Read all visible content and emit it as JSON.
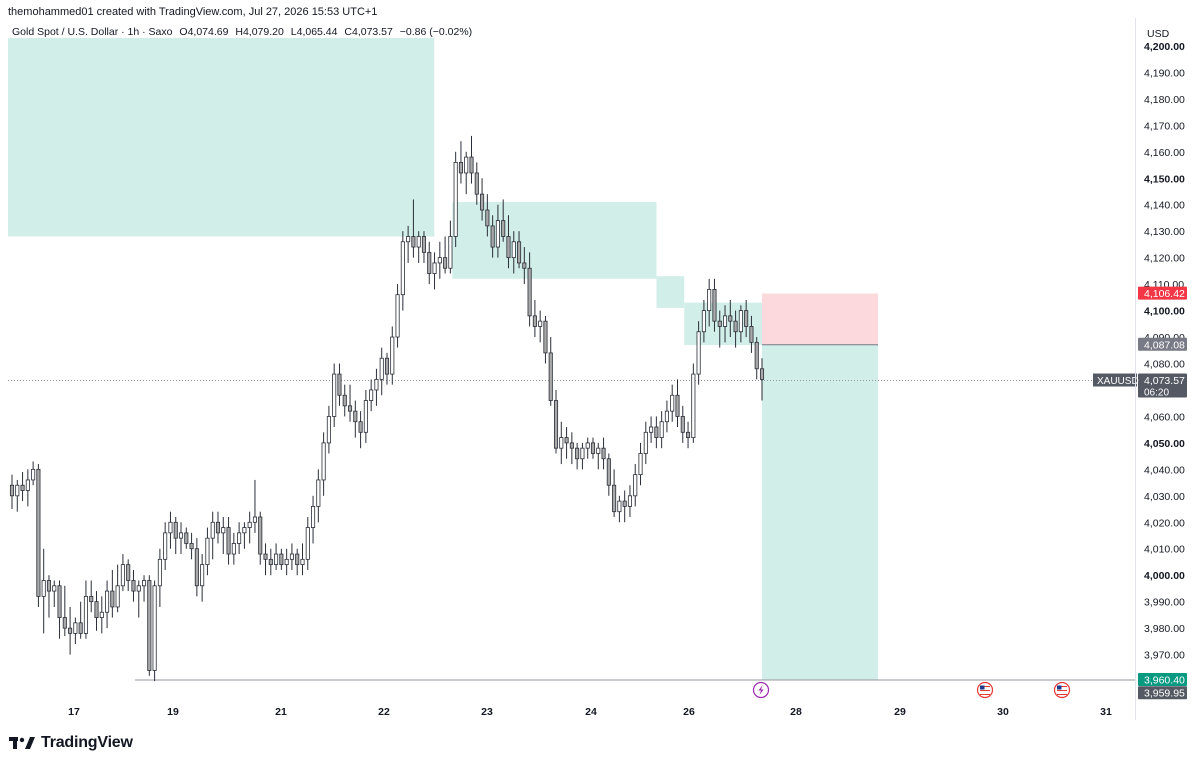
{
  "header": {
    "credit": "themohammed01 created with TradingView.com, Jul 27, 2026 15:53 UTC+1"
  },
  "legend": {
    "instrument": "Gold Spot / U.S. Dollar · 1h · Saxo",
    "open": "O4,074.69",
    "high": "H4,079.20",
    "low": "L4,065.44",
    "close": "C4,073.57",
    "change": "−0.86 (−0.02%)"
  },
  "branding": {
    "wordmark": "TradingView"
  },
  "chart_data": {
    "type": "candlestick",
    "currency": "USD",
    "symbol": "XAUUSD",
    "ylim": [
      3955,
      4203
    ],
    "y_ticks": [
      {
        "v": 4200,
        "label": "4,200.00",
        "bold": true
      },
      {
        "v": 4190,
        "label": "4,190.00"
      },
      {
        "v": 4180,
        "label": "4,180.00"
      },
      {
        "v": 4170,
        "label": "4,170.00"
      },
      {
        "v": 4160,
        "label": "4,160.00"
      },
      {
        "v": 4150,
        "label": "4,150.00",
        "bold": true
      },
      {
        "v": 4140,
        "label": "4,140.00"
      },
      {
        "v": 4130,
        "label": "4,130.00"
      },
      {
        "v": 4120,
        "label": "4,120.00"
      },
      {
        "v": 4110,
        "label": "4,110.00"
      },
      {
        "v": 4100,
        "label": "4,100.00",
        "bold": true
      },
      {
        "v": 4090,
        "label": "4,090.00"
      },
      {
        "v": 4080,
        "label": "4,080.00"
      },
      {
        "v": 4070,
        "label": "4,070.00"
      },
      {
        "v": 4060,
        "label": "4,060.00"
      },
      {
        "v": 4050,
        "label": "4,050.00",
        "bold": true
      },
      {
        "v": 4040,
        "label": "4,040.00"
      },
      {
        "v": 4030,
        "label": "4,030.00"
      },
      {
        "v": 4020,
        "label": "4,020.00"
      },
      {
        "v": 4010,
        "label": "4,010.00"
      },
      {
        "v": 4000,
        "label": "4,000.00",
        "bold": true
      },
      {
        "v": 3990,
        "label": "3,990.00"
      },
      {
        "v": 3980,
        "label": "3,980.00"
      },
      {
        "v": 3970,
        "label": "3,970.00"
      }
    ],
    "x_ticks": [
      {
        "day": 17,
        "label": "17"
      },
      {
        "day": 19,
        "label": "19"
      },
      {
        "day": 21,
        "label": "21"
      },
      {
        "day": 22,
        "label": "22"
      },
      {
        "day": 23,
        "label": "23"
      },
      {
        "day": 24,
        "label": "24"
      },
      {
        "day": 26,
        "label": "26"
      },
      {
        "day": 28,
        "label": "28"
      },
      {
        "day": 29,
        "label": "29"
      },
      {
        "day": 30,
        "label": "30"
      },
      {
        "day": 31,
        "label": "31"
      }
    ],
    "candles": [
      [
        4034,
        4038,
        4025,
        4030
      ],
      [
        4030,
        4036,
        4024,
        4034
      ],
      [
        4034,
        4039,
        4028,
        4032
      ],
      [
        4032,
        4040,
        4026,
        4036
      ],
      [
        4036,
        4043,
        4034,
        4040
      ],
      [
        4040,
        4042,
        3988,
        3992
      ],
      [
        3992,
        4010,
        3978,
        3998
      ],
      [
        3998,
        4000,
        3984,
        3994
      ],
      [
        3994,
        3998,
        3988,
        3996
      ],
      [
        3996,
        3998,
        3976,
        3984
      ],
      [
        3984,
        3996,
        3977,
        3980
      ],
      [
        3980,
        3988,
        3970,
        3978
      ],
      [
        3978,
        3984,
        3974,
        3982
      ],
      [
        3982,
        3990,
        3976,
        3978
      ],
      [
        3978,
        3998,
        3976,
        3992
      ],
      [
        3992,
        3998,
        3986,
        3990
      ],
      [
        3990,
        3994,
        3979,
        3984
      ],
      [
        3984,
        3992,
        3978,
        3986
      ],
      [
        3986,
        3998,
        3980,
        3994
      ],
      [
        3994,
        4002,
        3984,
        3988
      ],
      [
        3988,
        4004,
        3986,
        3996
      ],
      [
        3996,
        4008,
        3994,
        4004
      ],
      [
        4004,
        4006,
        3994,
        3998
      ],
      [
        3998,
        4002,
        3990,
        3994
      ],
      [
        3994,
        3998,
        3984,
        3996
      ],
      [
        3996,
        4000,
        3990,
        3998
      ],
      [
        3998,
        4000,
        3962,
        3964
      ],
      [
        3964,
        3998,
        3960,
        3996
      ],
      [
        3996,
        4010,
        3988,
        4006
      ],
      [
        4006,
        4020,
        4002,
        4016
      ],
      [
        4016,
        4024,
        4010,
        4020
      ],
      [
        4020,
        4022,
        4008,
        4014
      ],
      [
        4014,
        4020,
        4008,
        4016
      ],
      [
        4016,
        4018,
        4010,
        4012
      ],
      [
        4012,
        4016,
        4006,
        4010
      ],
      [
        4010,
        4014,
        3992,
        3996
      ],
      [
        3996,
        4008,
        3990,
        4004
      ],
      [
        4004,
        4018,
        4000,
        4014
      ],
      [
        4014,
        4024,
        4006,
        4020
      ],
      [
        4020,
        4024,
        4012,
        4016
      ],
      [
        4016,
        4022,
        4008,
        4018
      ],
      [
        4018,
        4022,
        4004,
        4008
      ],
      [
        4008,
        4016,
        4004,
        4012
      ],
      [
        4012,
        4020,
        4008,
        4016
      ],
      [
        4016,
        4020,
        4010,
        4018
      ],
      [
        4018,
        4024,
        4012,
        4020
      ],
      [
        4020,
        4036,
        4016,
        4022
      ],
      [
        4022,
        4024,
        4004,
        4008
      ],
      [
        4008,
        4012,
        4000,
        4006
      ],
      [
        4006,
        4010,
        4000,
        4004
      ],
      [
        4004,
        4012,
        4002,
        4008
      ],
      [
        4008,
        4010,
        4002,
        4004
      ],
      [
        4004,
        4010,
        4000,
        4006
      ],
      [
        4006,
        4012,
        4002,
        4008
      ],
      [
        4008,
        4010,
        4000,
        4004
      ],
      [
        4004,
        4012,
        4000,
        4006
      ],
      [
        4006,
        4022,
        4002,
        4018
      ],
      [
        4018,
        4030,
        4012,
        4026
      ],
      [
        4026,
        4040,
        4020,
        4036
      ],
      [
        4036,
        4054,
        4030,
        4050
      ],
      [
        4050,
        4064,
        4046,
        4060
      ],
      [
        4060,
        4080,
        4056,
        4076
      ],
      [
        4076,
        4080,
        4064,
        4068
      ],
      [
        4068,
        4072,
        4060,
        4064
      ],
      [
        4064,
        4072,
        4058,
        4062
      ],
      [
        4062,
        4066,
        4052,
        4058
      ],
      [
        4058,
        4062,
        4048,
        4054
      ],
      [
        4054,
        4070,
        4050,
        4066
      ],
      [
        4066,
        4074,
        4062,
        4070
      ],
      [
        4070,
        4078,
        4064,
        4074
      ],
      [
        4074,
        4086,
        4068,
        4082
      ],
      [
        4082,
        4084,
        4072,
        4076
      ],
      [
        4076,
        4094,
        4072,
        4090
      ],
      [
        4090,
        4110,
        4086,
        4106
      ],
      [
        4106,
        4130,
        4100,
        4126
      ],
      [
        4126,
        4132,
        4118,
        4128
      ],
      [
        4128,
        4142,
        4120,
        4124
      ],
      [
        4124,
        4130,
        4118,
        4128
      ],
      [
        4128,
        4130,
        4118,
        4122
      ],
      [
        4122,
        4126,
        4110,
        4114
      ],
      [
        4114,
        4122,
        4108,
        4118
      ],
      [
        4118,
        4126,
        4112,
        4120
      ],
      [
        4120,
        4128,
        4114,
        4116
      ],
      [
        4116,
        4134,
        4114,
        4128
      ],
      [
        4128,
        4160,
        4124,
        4156
      ],
      [
        4156,
        4164,
        4148,
        4152
      ],
      [
        4152,
        4160,
        4144,
        4158
      ],
      [
        4158,
        4166,
        4148,
        4152
      ],
      [
        4152,
        4156,
        4140,
        4144
      ],
      [
        4144,
        4150,
        4134,
        4138
      ],
      [
        4138,
        4144,
        4128,
        4132
      ],
      [
        4132,
        4136,
        4120,
        4124
      ],
      [
        4124,
        4140,
        4120,
        4134
      ],
      [
        4134,
        4142,
        4126,
        4128
      ],
      [
        4128,
        4136,
        4116,
        4120
      ],
      [
        4120,
        4130,
        4114,
        4126
      ],
      [
        4126,
        4130,
        4116,
        4118
      ],
      [
        4118,
        4124,
        4110,
        4116
      ],
      [
        4116,
        4122,
        4094,
        4098
      ],
      [
        4098,
        4104,
        4090,
        4094
      ],
      [
        4094,
        4100,
        4088,
        4096
      ],
      [
        4096,
        4098,
        4080,
        4084
      ],
      [
        4084,
        4090,
        4064,
        4066
      ],
      [
        4066,
        4070,
        4046,
        4048
      ],
      [
        4048,
        4058,
        4042,
        4052
      ],
      [
        4052,
        4056,
        4044,
        4050
      ],
      [
        4050,
        4054,
        4042,
        4048
      ],
      [
        4048,
        4050,
        4040,
        4044
      ],
      [
        4044,
        4050,
        4040,
        4048
      ],
      [
        4048,
        4052,
        4044,
        4050
      ],
      [
        4050,
        4052,
        4044,
        4046
      ],
      [
        4046,
        4050,
        4040,
        4048
      ],
      [
        4048,
        4052,
        4040,
        4044
      ],
      [
        4044,
        4046,
        4030,
        4034
      ],
      [
        4034,
        4040,
        4022,
        4024
      ],
      [
        4024,
        4030,
        4020,
        4028
      ],
      [
        4028,
        4032,
        4020,
        4026
      ],
      [
        4026,
        4034,
        4022,
        4030
      ],
      [
        4030,
        4042,
        4026,
        4038
      ],
      [
        4038,
        4050,
        4034,
        4046
      ],
      [
        4046,
        4058,
        4042,
        4054
      ],
      [
        4054,
        4060,
        4050,
        4056
      ],
      [
        4056,
        4060,
        4048,
        4052
      ],
      [
        4052,
        4062,
        4048,
        4058
      ],
      [
        4058,
        4066,
        4054,
        4062
      ],
      [
        4062,
        4072,
        4058,
        4068
      ],
      [
        4068,
        4074,
        4056,
        4060
      ],
      [
        4060,
        4064,
        4050,
        4054
      ],
      [
        4054,
        4058,
        4048,
        4052
      ],
      [
        4052,
        4080,
        4050,
        4076
      ],
      [
        4076,
        4096,
        4072,
        4092
      ],
      [
        4092,
        4104,
        4088,
        4100
      ],
      [
        4100,
        4112,
        4094,
        4108
      ],
      [
        4108,
        4112,
        4092,
        4096
      ],
      [
        4096,
        4100,
        4086,
        4094
      ],
      [
        4094,
        4102,
        4088,
        4098
      ],
      [
        4098,
        4104,
        4090,
        4096
      ],
      [
        4096,
        4100,
        4086,
        4092
      ],
      [
        4092,
        4102,
        4088,
        4100
      ],
      [
        4100,
        4104,
        4090,
        4094
      ],
      [
        4094,
        4098,
        4084,
        4088
      ],
      [
        4088,
        4090,
        4074,
        4078
      ],
      [
        4078,
        4082,
        4066,
        4074
      ]
    ],
    "zones": [
      {
        "name": "supply-zone-1",
        "x0": 0.0,
        "x1": 15.35,
        "y0": 4128,
        "y1": 4203,
        "fill": "#d1eee8"
      },
      {
        "name": "supply-zone-2",
        "x0": 16.0,
        "x1": 23.35,
        "y0": 4112,
        "y1": 4141,
        "fill": "#d1eee8"
      },
      {
        "name": "supply-zone-3",
        "x0": 23.35,
        "x1": 24.35,
        "y0": 4101,
        "y1": 4113,
        "fill": "#d1eee8"
      },
      {
        "name": "supply-zone-4",
        "x0": 24.35,
        "x1": 27.15,
        "y0": 4087,
        "y1": 4103,
        "fill": "#d1eee8"
      }
    ],
    "position": {
      "type": "short",
      "x0": 27.15,
      "x1": 29.0,
      "stop": 4106.42,
      "entry": 4087.08,
      "target": 3960.4,
      "stop_fill": "#fbd9dc",
      "target_fill": "#d1eee8"
    },
    "price_labels": [
      {
        "name": "stop-price-label",
        "v": 4106.42,
        "text": "4,106.42",
        "bg": "#f23645"
      },
      {
        "name": "entry-price-label",
        "v": 4087.08,
        "text": "4,087.08",
        "bg": "#787b86"
      },
      {
        "name": "current-price-label",
        "v": 4073.57,
        "text": "4,073.57",
        "sub": "06:20",
        "bg": "#555963"
      },
      {
        "name": "target-price-label",
        "v": 3960.4,
        "text": "3,960.40",
        "bg": "#089981"
      },
      {
        "name": "low-price-label",
        "v": 3959.95,
        "text": "3,959.95",
        "bg": "#555963"
      }
    ],
    "current_price": 4073.57,
    "low_line_price": 3960.4,
    "events": [
      {
        "name": "earnings-event-icon",
        "day": 27.65,
        "glyph": "⚡",
        "color": "#9c27b0"
      },
      {
        "name": "us-flag-event-icon",
        "day": 29.8,
        "glyph": "🇺🇸",
        "color": "#e53935"
      },
      {
        "name": "us-flag-event-icon-2",
        "day": 30.55,
        "glyph": "🇺🇸",
        "color": "#e53935"
      }
    ],
    "colors": {
      "bull": "#ffffff",
      "bear": "#a9a9a9",
      "wick": "#2a2e39",
      "grid_dot": "#9598a1"
    }
  }
}
